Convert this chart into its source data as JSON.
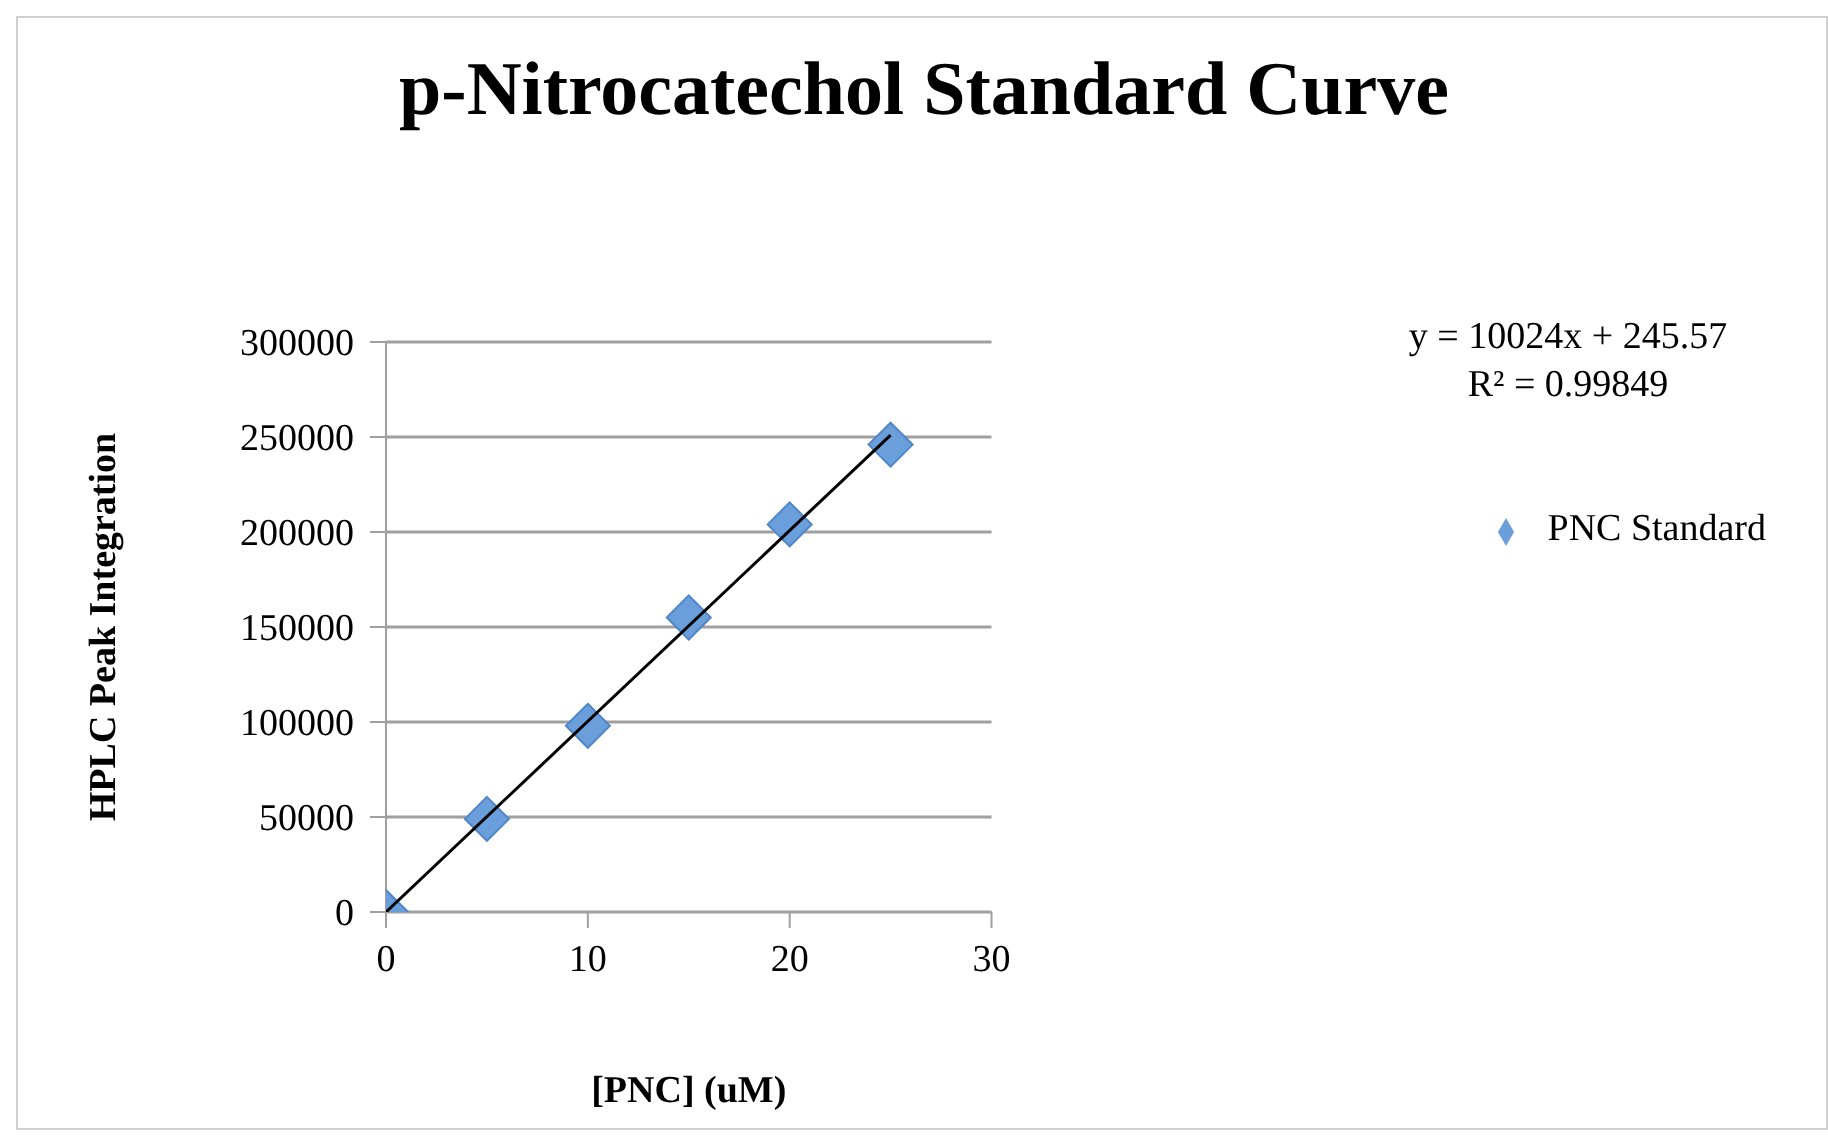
{
  "chart_data": {
    "type": "scatter",
    "title": "p-Nitrocatechol Standard Curve",
    "xlabel": "[PNC] (uM)",
    "ylabel": "HPLC Peak Integration",
    "x": [
      0,
      5,
      10,
      15,
      20,
      25
    ],
    "series": [
      {
        "name": "PNC Standard",
        "color": "#6a9fdc",
        "values": [
          0,
          49000,
          98000,
          155000,
          204000,
          246000
        ]
      },
      {
        "type": "line",
        "marker": "none",
        "color": "#000000",
        "x": [
          0,
          25
        ],
        "values": [
          0,
          251000
        ]
      }
    ],
    "xlim": [
      0,
      30
    ],
    "xticks": [
      0,
      10,
      20,
      30
    ],
    "ylim": [
      0,
      300000
    ],
    "yticks": [
      0,
      50000,
      100000,
      150000,
      200000,
      250000,
      300000
    ],
    "grid": "y",
    "legend": "right",
    "marker": "diamond",
    "annotations": [
      "y = 10024x + 245.57",
      "R² = 0.99849"
    ]
  }
}
